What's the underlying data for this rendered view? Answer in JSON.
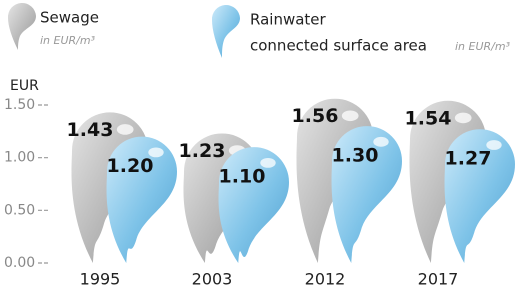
{
  "chart_data": {
    "type": "drop-bar",
    "y_label": "EUR",
    "unit_label": "in EUR/m³",
    "categories": [
      "1995",
      "2003",
      "2012",
      "2017"
    ],
    "series": [
      {
        "name": "Sewage",
        "color": "#b0b0b0",
        "values": [
          1.43,
          1.23,
          1.56,
          1.54
        ],
        "value_labels": [
          "1.43",
          "1.23",
          "1.56",
          "1.54"
        ]
      },
      {
        "name": "Rainwater",
        "description": "connected surface area",
        "color": "#7ec3e8",
        "values": [
          1.2,
          1.1,
          1.3,
          1.27
        ],
        "value_labels": [
          "1.20",
          "1.10",
          "1.30",
          "1.27"
        ]
      }
    ],
    "ylim": [
      0,
      1.5
    ],
    "yticks": [
      {
        "value": 0,
        "label": "0.00"
      },
      {
        "value": 0.5,
        "label": "0.50"
      },
      {
        "value": 1,
        "label": "1.00"
      },
      {
        "value": 1.5,
        "label": "1.50"
      }
    ]
  }
}
